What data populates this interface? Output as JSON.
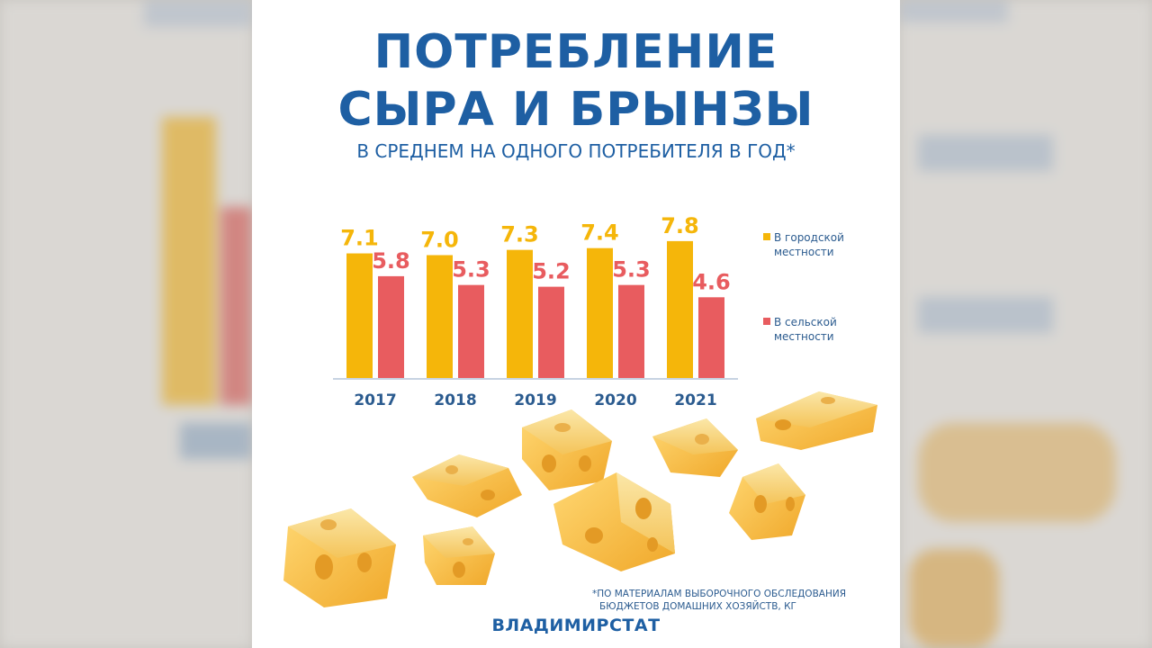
{
  "header": {
    "title_line1": "ПОТРЕБЛЕНИЕ",
    "title_line2": "СЫРА И БРЫНЗЫ",
    "subtitle": "В СРЕДНЕМ НА ОДНОГО ПОТРЕБИТЕЛЯ В ГОД*"
  },
  "colors": {
    "urban": "#f5b60a",
    "rural": "#e85c5f",
    "title": "#1e5fa3",
    "text": "#2b5b8f"
  },
  "chart_data": {
    "type": "bar",
    "categories": [
      "2017",
      "2018",
      "2019",
      "2020",
      "2021"
    ],
    "series": [
      {
        "name": "В городской местности",
        "values": [
          7.1,
          7.0,
          7.3,
          7.4,
          7.8
        ]
      },
      {
        "name": "В сельской местности",
        "values": [
          5.8,
          5.3,
          5.2,
          5.3,
          4.6
        ]
      }
    ],
    "value_labels": {
      "urban": [
        "7.1",
        "7.0",
        "7.3",
        "7.4",
        "7.8"
      ],
      "rural": [
        "5.8",
        "5.3",
        "5.2",
        "5.3",
        "4.6"
      ]
    },
    "ylim": [
      0,
      10
    ],
    "grid": false,
    "legend_position": "right"
  },
  "legend": {
    "urban_line1": "В городской",
    "urban_line2": "местности",
    "rural_line1": "В сельской",
    "rural_line2": "местности"
  },
  "footnote": {
    "line1": "*ПО МАТЕРИАЛАМ ВЫБОРОЧНОГО ОБСЛЕДОВАНИЯ",
    "line2": "БЮДЖЕТОВ ДОМАШНИХ ХОЗЯЙСТВ, КГ"
  },
  "source": "ВЛАДИМИРСТАТ"
}
